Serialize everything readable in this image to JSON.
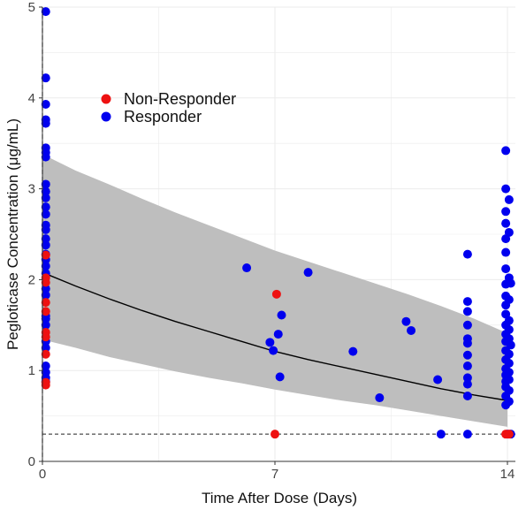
{
  "chart_data": {
    "type": "scatter",
    "title": "",
    "xlabel": "Time After Dose (Days)",
    "ylabel": "Pegloticase Concentration (μg/mL)",
    "xlim": [
      0,
      14.5
    ],
    "ylim": [
      0,
      5
    ],
    "xticks": [
      0,
      7,
      14
    ],
    "yticks": [
      0,
      1,
      2,
      3,
      4,
      5
    ],
    "grid": true,
    "legend_position": "top-left",
    "series": [
      {
        "name": "Non-Responder",
        "color": "#ee1111",
        "points": [
          [
            0.1,
            2.27
          ],
          [
            0.1,
            2.02
          ],
          [
            0.1,
            1.97
          ],
          [
            0.1,
            1.75
          ],
          [
            0.1,
            1.65
          ],
          [
            0.1,
            1.42
          ],
          [
            0.1,
            1.37
          ],
          [
            0.1,
            1.18
          ],
          [
            0.1,
            0.87
          ],
          [
            0.1,
            0.84
          ],
          [
            7.0,
            0.3
          ],
          [
            7.05,
            1.84
          ],
          [
            13.95,
            0.3
          ],
          [
            14.05,
            0.3
          ]
        ]
      },
      {
        "name": "Responder",
        "color": "#0000ee",
        "points": [
          [
            0.1,
            4.95
          ],
          [
            0.1,
            4.22
          ],
          [
            0.1,
            3.93
          ],
          [
            0.1,
            3.76
          ],
          [
            0.1,
            3.72
          ],
          [
            0.1,
            3.45
          ],
          [
            0.1,
            3.4
          ],
          [
            0.1,
            3.35
          ],
          [
            0.1,
            3.05
          ],
          [
            0.1,
            2.97
          ],
          [
            0.1,
            2.9
          ],
          [
            0.1,
            2.8
          ],
          [
            0.1,
            2.72
          ],
          [
            0.1,
            2.6
          ],
          [
            0.1,
            2.55
          ],
          [
            0.1,
            2.45
          ],
          [
            0.1,
            2.38
          ],
          [
            0.1,
            2.28
          ],
          [
            0.1,
            2.22
          ],
          [
            0.1,
            2.15
          ],
          [
            0.1,
            2.07
          ],
          [
            0.1,
            1.9
          ],
          [
            0.1,
            1.83
          ],
          [
            0.1,
            1.6
          ],
          [
            0.1,
            1.57
          ],
          [
            0.1,
            1.5
          ],
          [
            0.1,
            1.32
          ],
          [
            0.1,
            1.25
          ],
          [
            0.1,
            1.05
          ],
          [
            0.1,
            0.98
          ],
          [
            0.1,
            0.92
          ],
          [
            0.1,
            0.88
          ],
          [
            6.15,
            2.13
          ],
          [
            6.85,
            1.31
          ],
          [
            6.95,
            1.22
          ],
          [
            7.1,
            1.4
          ],
          [
            7.15,
            0.93
          ],
          [
            7.2,
            1.61
          ],
          [
            8.0,
            2.08
          ],
          [
            9.35,
            1.21
          ],
          [
            10.15,
            0.7
          ],
          [
            10.95,
            1.54
          ],
          [
            11.1,
            1.44
          ],
          [
            11.9,
            0.9
          ],
          [
            12.0,
            0.3
          ],
          [
            12.8,
            2.28
          ],
          [
            12.8,
            1.76
          ],
          [
            12.8,
            1.65
          ],
          [
            12.8,
            1.5
          ],
          [
            12.8,
            1.35
          ],
          [
            12.8,
            1.3
          ],
          [
            12.8,
            1.17
          ],
          [
            12.8,
            1.05
          ],
          [
            12.8,
            0.92
          ],
          [
            12.8,
            0.85
          ],
          [
            12.8,
            0.72
          ],
          [
            12.8,
            0.3
          ],
          [
            13.95,
            3.42
          ],
          [
            13.95,
            3.0
          ],
          [
            13.95,
            2.75
          ],
          [
            13.95,
            2.62
          ],
          [
            13.95,
            2.45
          ],
          [
            13.95,
            2.3
          ],
          [
            13.95,
            2.12
          ],
          [
            13.95,
            1.95
          ],
          [
            13.95,
            1.82
          ],
          [
            13.95,
            1.72
          ],
          [
            13.95,
            1.62
          ],
          [
            13.95,
            1.5
          ],
          [
            13.95,
            1.4
          ],
          [
            13.95,
            1.32
          ],
          [
            13.95,
            1.22
          ],
          [
            13.95,
            1.12
          ],
          [
            13.95,
            1.02
          ],
          [
            13.95,
            0.95
          ],
          [
            13.95,
            0.88
          ],
          [
            13.95,
            0.82
          ],
          [
            13.95,
            0.72
          ],
          [
            13.95,
            0.62
          ],
          [
            14.0,
            0.3
          ],
          [
            14.05,
            2.88
          ],
          [
            14.05,
            2.52
          ],
          [
            14.05,
            2.02
          ],
          [
            14.05,
            1.78
          ],
          [
            14.05,
            1.55
          ],
          [
            14.05,
            1.45
          ],
          [
            14.05,
            1.35
          ],
          [
            14.05,
            1.18
          ],
          [
            14.05,
            1.08
          ],
          [
            14.05,
            0.98
          ],
          [
            14.05,
            0.9
          ],
          [
            14.05,
            0.78
          ],
          [
            14.05,
            0.66
          ],
          [
            14.1,
            1.96
          ],
          [
            14.1,
            1.28
          ],
          [
            14.1,
            0.3
          ]
        ]
      }
    ],
    "median_line": {
      "color": "#000000",
      "points": [
        [
          0,
          2.08
        ],
        [
          1,
          1.93
        ],
        [
          2,
          1.79
        ],
        [
          3,
          1.66
        ],
        [
          4,
          1.54
        ],
        [
          5,
          1.43
        ],
        [
          6,
          1.32
        ],
        [
          7,
          1.21
        ],
        [
          8,
          1.12
        ],
        [
          9,
          1.04
        ],
        [
          10,
          0.96
        ],
        [
          11,
          0.88
        ],
        [
          12,
          0.8
        ],
        [
          13,
          0.73
        ],
        [
          14,
          0.67
        ]
      ]
    },
    "prediction_interval": {
      "color": "#bebebe",
      "x": [
        0,
        1,
        2,
        3,
        4,
        5,
        6,
        7,
        8,
        9,
        10,
        11,
        12,
        13,
        14
      ],
      "lower": [
        1.34,
        1.25,
        1.15,
        1.07,
        0.99,
        0.92,
        0.86,
        0.79,
        0.73,
        0.67,
        0.62,
        0.56,
        0.5,
        0.44,
        0.38
      ],
      "upper": [
        3.38,
        3.2,
        3.05,
        2.89,
        2.74,
        2.6,
        2.46,
        2.32,
        2.2,
        2.08,
        1.96,
        1.84,
        1.71,
        1.57,
        1.41
      ]
    },
    "reference_line": {
      "y": 0.3,
      "style": "dashed",
      "color": "#222222"
    },
    "vertical_line": {
      "x": 0,
      "style": "dashed",
      "color": "#222222"
    }
  }
}
